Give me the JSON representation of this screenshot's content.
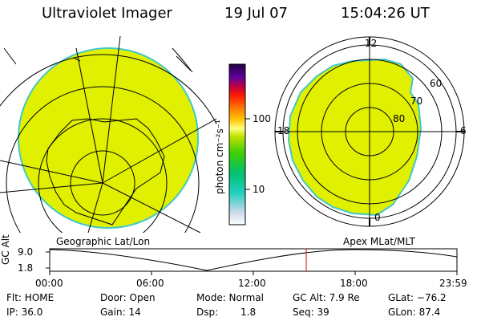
{
  "header": {
    "title": "Ultraviolet Imager",
    "date": "19 Jul 07",
    "time": "15:04:26 UT"
  },
  "colorbar": {
    "unit_label": "photon cm⁻²s⁻¹",
    "ticks": [
      "100",
      "10"
    ]
  },
  "polar": {
    "top_label": "12",
    "right_label": "6",
    "bottom_label": "0",
    "left_label": "18",
    "rings": [
      "60",
      "70",
      "80"
    ]
  },
  "map_captions": {
    "left": "Geographic Lat/Lon",
    "right": "Apex MLat/MLT"
  },
  "timeline": {
    "y_label": "GC Alt",
    "y_max": "9.0",
    "y_min": "1.8",
    "x_ticks": [
      "00:00",
      "06:00",
      "12:00",
      "18:00",
      "23:59"
    ],
    "current_time_fraction": 0.63
  },
  "info": {
    "row1": {
      "filter": "Flt: HOME",
      "door": "Door: Open",
      "mode": "Mode: Normal",
      "gc_alt": "GC Alt: 7.9 Re",
      "glat": "GLat: −76.2"
    },
    "row2": {
      "ip": "IP: 36.0",
      "gain": "Gain: 14",
      "dsp_label": "Dsp:",
      "dsp_value": "1.8",
      "seq": "Seq: 39",
      "glon": "GLon: 87.4"
    }
  },
  "colors": {
    "fill": "#e0f000",
    "edge": "#40c8c8",
    "marker": "#e00000"
  }
}
